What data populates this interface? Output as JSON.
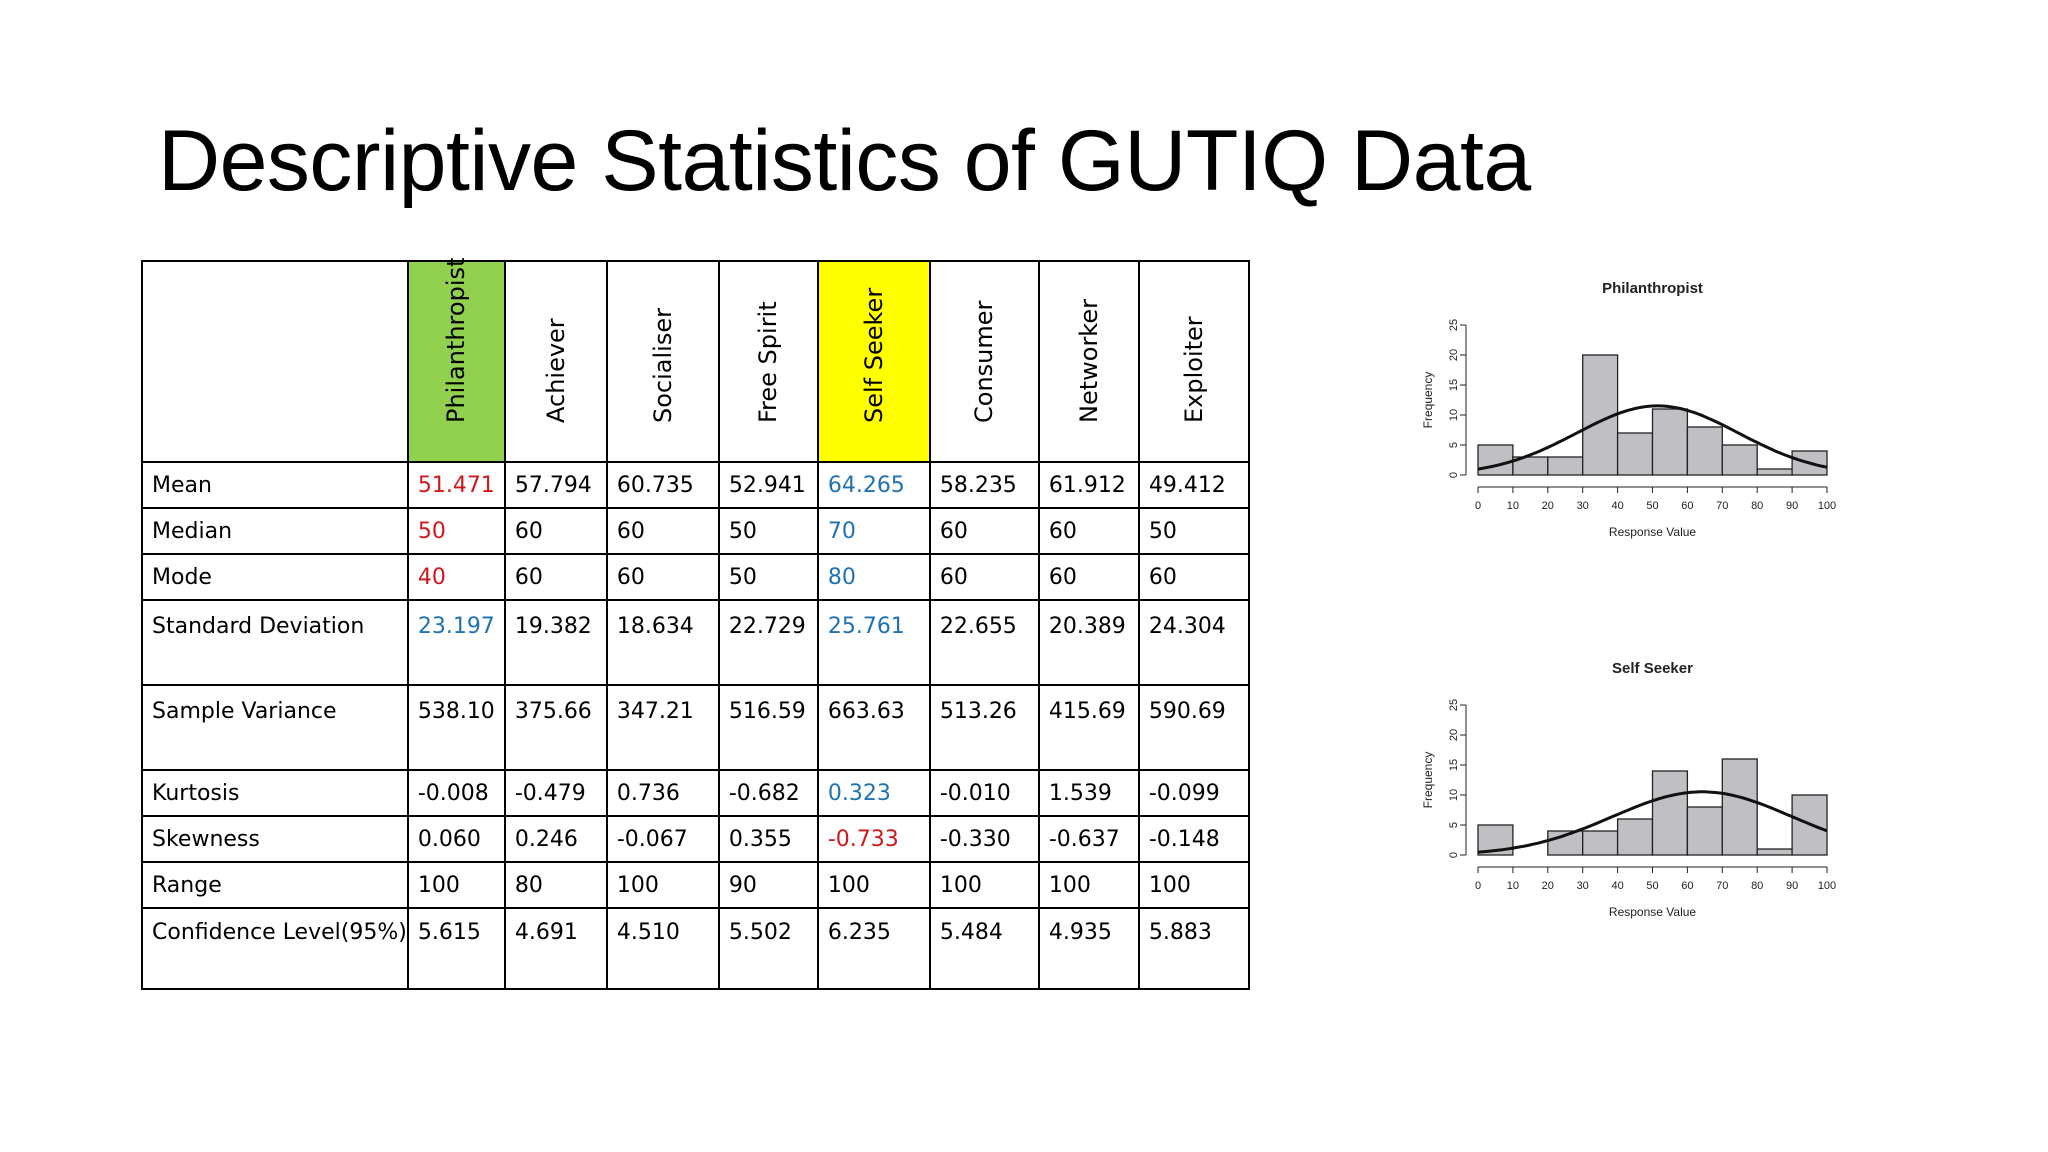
{
  "slide": {
    "title": "Descriptive Statistics of GUTIQ Data"
  },
  "table": {
    "columns": [
      "Philanthropist",
      "Achiever",
      "Socialiser",
      "Free Spirit",
      "Self Seeker",
      "Consumer",
      "Networker",
      "Exploiter"
    ],
    "header_colors": {
      "Philanthropist": "#92d050",
      "Self Seeker": "#ffff00"
    },
    "colors": {
      "red": "#d0171b",
      "blue": "#2172b0"
    },
    "rows": [
      {
        "label": "Mean",
        "values": [
          "51.471",
          "57.794",
          "60.735",
          "52.941",
          "64.265",
          "58.235",
          "61.912",
          "49.412"
        ],
        "colors": [
          "red",
          "",
          "",
          "",
          "blue",
          "",
          "",
          ""
        ]
      },
      {
        "label": "Median",
        "values": [
          "50",
          "60",
          "60",
          "50",
          "70",
          "60",
          "60",
          "50"
        ],
        "colors": [
          "red",
          "",
          "",
          "",
          "blue",
          "",
          "",
          ""
        ]
      },
      {
        "label": "Mode",
        "values": [
          "40",
          "60",
          "60",
          "50",
          "80",
          "60",
          "60",
          "60"
        ],
        "colors": [
          "red",
          "",
          "",
          "",
          "blue",
          "",
          "",
          ""
        ]
      },
      {
        "label": "Standard Deviation",
        "values": [
          "23.197",
          "19.382",
          "18.634",
          "22.729",
          "25.761",
          "22.655",
          "20.389",
          "24.304"
        ],
        "colors": [
          "blue",
          "",
          "",
          "",
          "blue",
          "",
          "",
          ""
        ]
      },
      {
        "label": "Sample Variance",
        "values": [
          "538.10",
          "375.66",
          "347.21",
          "516.59",
          "663.63",
          "513.26",
          "415.69",
          "590.69"
        ],
        "colors": [
          "",
          "",
          "",
          "",
          "",
          "",
          "",
          ""
        ]
      },
      {
        "label": "Kurtosis",
        "values": [
          "-0.008",
          "-0.479",
          "0.736",
          "-0.682",
          "0.323",
          "-0.010",
          "1.539",
          "-0.099"
        ],
        "colors": [
          "",
          "",
          "",
          "",
          "blue",
          "",
          "",
          ""
        ]
      },
      {
        "label": "Skewness",
        "values": [
          "0.060",
          "0.246",
          "-0.067",
          "0.355",
          "-0.733",
          "-0.330",
          "-0.637",
          "-0.148"
        ],
        "colors": [
          "",
          "",
          "",
          "",
          "red",
          "",
          "",
          ""
        ]
      },
      {
        "label": "Range",
        "values": [
          "100",
          "80",
          "100",
          "90",
          "100",
          "100",
          "100",
          "100"
        ],
        "colors": [
          "",
          "",
          "",
          "",
          "",
          "",
          "",
          ""
        ]
      },
      {
        "label": "Confidence Level(95%)",
        "values": [
          "5.615",
          "4.691",
          "4.510",
          "5.502",
          "6.235",
          "5.484",
          "4.935",
          "5.883"
        ],
        "colors": [
          "",
          "",
          "",
          "",
          "",
          "",
          "",
          ""
        ]
      }
    ]
  },
  "chart_data": [
    {
      "type": "bar",
      "title": "Philanthropist",
      "xlabel": "Response Value",
      "ylabel": "Frequency",
      "xlim": [
        0,
        100
      ],
      "ylim": [
        0,
        25
      ],
      "xticks": [
        "0",
        "10",
        "20",
        "30",
        "40",
        "50",
        "60",
        "70",
        "80",
        "90",
        "100"
      ],
      "yticks": [
        "0",
        "5",
        "10",
        "15",
        "20",
        "25"
      ],
      "bins": [
        [
          0,
          10
        ],
        [
          10,
          20
        ],
        [
          20,
          30
        ],
        [
          30,
          40
        ],
        [
          40,
          50
        ],
        [
          50,
          60
        ],
        [
          60,
          70
        ],
        [
          70,
          80
        ],
        [
          80,
          90
        ],
        [
          90,
          100
        ]
      ],
      "values": [
        5,
        3,
        3,
        20,
        7,
        11,
        8,
        5,
        1,
        4
      ],
      "curve": {
        "type": "normal-density",
        "mean": 51.471,
        "sd": 23.197
      },
      "bar_color": "#c0c0c4",
      "grid": false
    },
    {
      "type": "bar",
      "title": "Self Seeker",
      "xlabel": "Response Value",
      "ylabel": "Frequency",
      "xlim": [
        0,
        100
      ],
      "ylim": [
        0,
        25
      ],
      "xticks": [
        "0",
        "10",
        "20",
        "30",
        "40",
        "50",
        "60",
        "70",
        "80",
        "90",
        "100"
      ],
      "yticks": [
        "0",
        "5",
        "10",
        "15",
        "20",
        "25"
      ],
      "bins": [
        [
          0,
          10
        ],
        [
          10,
          20
        ],
        [
          20,
          30
        ],
        [
          30,
          40
        ],
        [
          40,
          50
        ],
        [
          50,
          60
        ],
        [
          60,
          70
        ],
        [
          70,
          80
        ],
        [
          80,
          90
        ],
        [
          90,
          100
        ]
      ],
      "values": [
        5,
        0,
        4,
        4,
        6,
        14,
        8,
        16,
        1,
        10
      ],
      "curve": {
        "type": "normal-density",
        "mean": 64.265,
        "sd": 25.761
      },
      "bar_color": "#c0c0c4",
      "grid": false
    }
  ]
}
